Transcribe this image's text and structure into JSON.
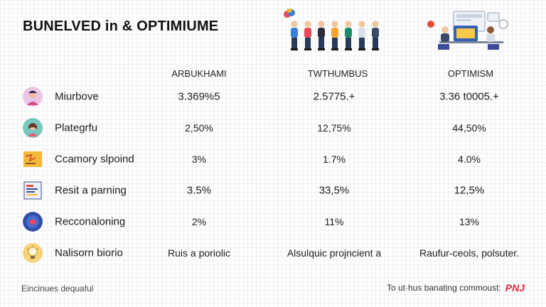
{
  "header": {
    "title": "BUNELVED in & OPTIMIUME",
    "illustration_left": "group-of-people-illustration",
    "illustration_right": "office-workers-illustration"
  },
  "columns": [
    "ARBUKHAMI",
    "TWTHUMBUS",
    "OPTIMISM"
  ],
  "rows": [
    {
      "icon": "person-avatar-icon",
      "icon_color": "#e9c6e6",
      "label": "Miurbove",
      "values": [
        "3.369%5",
        "2.5775.+",
        "3.36 t0005.+"
      ]
    },
    {
      "icon": "woman-avatar-icon",
      "icon_color": "#79c8c0",
      "label": "Plategrfu",
      "values": [
        "2,50%",
        "12,75%",
        "44,50%"
      ]
    },
    {
      "icon": "sticky-note-icon",
      "icon_color": "#f4b93a",
      "label": "Ccamory slpoind",
      "values": [
        "3%",
        "1.7%",
        "4.0%"
      ]
    },
    {
      "icon": "chart-card-icon",
      "icon_color": "#3a4a9a",
      "label": "Resit a parning",
      "values": [
        "3.5%",
        "33,5%",
        "12,5%"
      ]
    },
    {
      "icon": "badge-icon",
      "icon_color": "#2f4fa8",
      "label": "Recconaloning",
      "values": [
        "2%",
        "11%",
        "13%"
      ]
    },
    {
      "icon": "bulb-icon",
      "icon_color": "#f6d27a",
      "label": "Nalisorn biorio",
      "values": [
        "Ruis a poriolic",
        "Alsulquic projncient a",
        "Raufur-ceols, polsuter."
      ]
    }
  ],
  "footer": {
    "left": "Eincinues dequaful",
    "right": "To ut·hus banating commoust:",
    "brand": "PNJ",
    "brand_color": "#e8283a"
  }
}
